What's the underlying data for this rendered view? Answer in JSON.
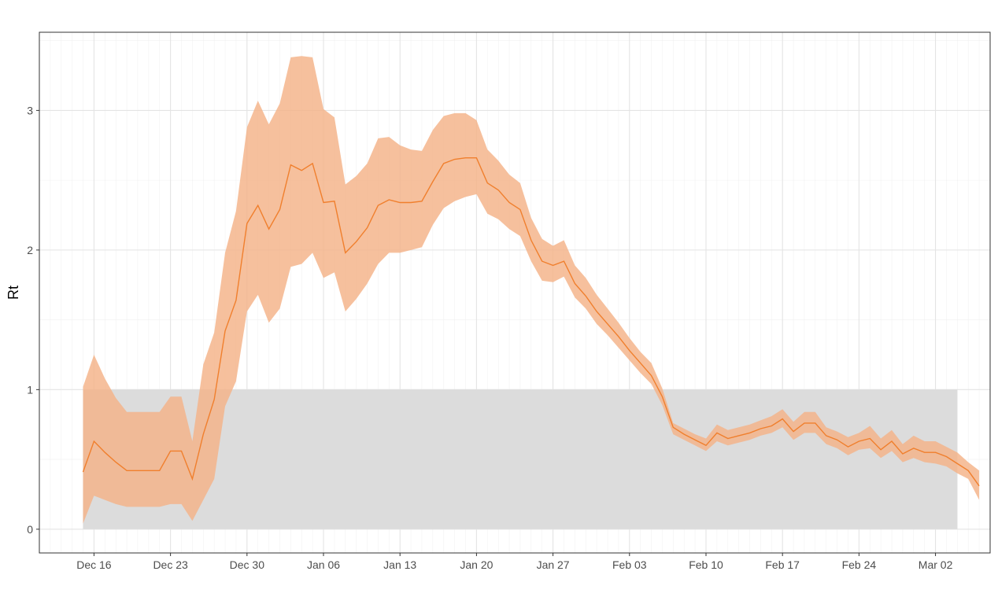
{
  "chart_data": {
    "type": "line",
    "title": "",
    "xlabel": "",
    "ylabel": "Rt",
    "x_ticks": [
      "Dec 16",
      "Dec 23",
      "Dec 30",
      "Jan 06",
      "Jan 13",
      "Jan 20",
      "Jan 27",
      "Feb 03",
      "Feb 10",
      "Feb 17",
      "Feb 24",
      "Mar 02"
    ],
    "y_ticks": [
      "0",
      "1",
      "2",
      "3"
    ],
    "ylim": [
      -0.17,
      3.56
    ],
    "xlim": [
      "2020-12-11",
      "2021-03-08"
    ],
    "grid": true,
    "legend": "none",
    "colors": {
      "line": "#f07f2d",
      "ribbon": "#f4b287",
      "threshold_band": "#dcdcdc",
      "muted_line": "#d8a57f",
      "muted_ribbon": "#ecc6a6"
    },
    "threshold_band": {
      "ymin": 0,
      "ymax": 1,
      "x_start": "2020-12-15",
      "x_end": "2021-03-05"
    },
    "series": [
      {
        "x": [
          "2020-12-15",
          "2020-12-16",
          "2020-12-17",
          "2020-12-18",
          "2020-12-19",
          "2020-12-20",
          "2020-12-21",
          "2020-12-22",
          "2020-12-23",
          "2020-12-24",
          "2020-12-25",
          "2020-12-26",
          "2020-12-27",
          "2020-12-28",
          "2020-12-29",
          "2020-12-30",
          "2020-12-31",
          "2021-01-01",
          "2021-01-02",
          "2021-01-03",
          "2021-01-04",
          "2021-01-05",
          "2021-01-06",
          "2021-01-07",
          "2021-01-08",
          "2021-01-09",
          "2021-01-10",
          "2021-01-11",
          "2021-01-12",
          "2021-01-13",
          "2021-01-14",
          "2021-01-15",
          "2021-01-16",
          "2021-01-17",
          "2021-01-18",
          "2021-01-19",
          "2021-01-20",
          "2021-01-21",
          "2021-01-22",
          "2021-01-23",
          "2021-01-24",
          "2021-01-25",
          "2021-01-26",
          "2021-01-27",
          "2021-01-28",
          "2021-01-29",
          "2021-01-30",
          "2021-01-31",
          "2021-02-01",
          "2021-02-02",
          "2021-02-03",
          "2021-02-04",
          "2021-02-05",
          "2021-02-06",
          "2021-02-07",
          "2021-02-08",
          "2021-02-09",
          "2021-02-10",
          "2021-02-11",
          "2021-02-12",
          "2021-02-13",
          "2021-02-14",
          "2021-02-15",
          "2021-02-16",
          "2021-02-17",
          "2021-02-18",
          "2021-02-19",
          "2021-02-20",
          "2021-02-21",
          "2021-02-22",
          "2021-02-23",
          "2021-02-24",
          "2021-02-25",
          "2021-02-26",
          "2021-02-27",
          "2021-02-28",
          "2021-03-01",
          "2021-03-02",
          "2021-03-03",
          "2021-03-04",
          "2021-03-05"
        ],
        "mean": [
          0.41,
          0.63,
          0.55,
          0.48,
          0.42,
          0.42,
          0.42,
          0.42,
          0.56,
          0.56,
          0.36,
          0.68,
          0.93,
          1.42,
          1.64,
          2.19,
          2.32,
          2.15,
          2.29,
          2.61,
          2.57,
          2.62,
          2.34,
          2.35,
          1.98,
          2.06,
          2.16,
          2.32,
          2.36,
          2.34,
          2.34,
          2.35,
          2.49,
          2.62,
          2.65,
          2.66,
          2.66,
          2.48,
          2.43,
          2.34,
          2.29,
          2.07,
          1.92,
          1.89,
          1.92,
          1.76,
          1.67,
          1.56,
          1.47,
          1.38,
          1.28,
          1.19,
          1.1,
          0.95,
          0.73,
          0.68,
          0.64,
          0.6,
          0.69,
          0.65,
          0.67,
          0.69,
          0.72,
          0.74,
          0.79,
          0.7,
          0.76,
          0.76,
          0.67,
          0.64,
          0.59,
          0.63,
          0.65,
          0.57,
          0.63,
          0.54,
          0.58,
          0.55,
          0.55,
          0.52,
          0.47
        ],
        "upper": [
          1.02,
          1.25,
          1.08,
          0.94,
          0.84,
          0.84,
          0.84,
          0.84,
          0.95,
          0.95,
          0.63,
          1.18,
          1.41,
          1.98,
          2.28,
          2.88,
          3.07,
          2.9,
          3.05,
          3.38,
          3.39,
          3.38,
          3.01,
          2.95,
          2.47,
          2.53,
          2.62,
          2.8,
          2.81,
          2.75,
          2.72,
          2.71,
          2.86,
          2.96,
          2.98,
          2.98,
          2.93,
          2.72,
          2.64,
          2.54,
          2.48,
          2.23,
          2.08,
          2.03,
          2.07,
          1.89,
          1.8,
          1.68,
          1.58,
          1.48,
          1.37,
          1.27,
          1.19,
          1.01,
          0.76,
          0.72,
          0.68,
          0.65,
          0.75,
          0.71,
          0.73,
          0.75,
          0.78,
          0.81,
          0.86,
          0.77,
          0.84,
          0.84,
          0.73,
          0.7,
          0.66,
          0.69,
          0.74,
          0.65,
          0.71,
          0.61,
          0.67,
          0.63,
          0.63,
          0.59,
          0.55
        ],
        "lower": [
          0.04,
          0.24,
          0.21,
          0.18,
          0.16,
          0.16,
          0.16,
          0.16,
          0.18,
          0.18,
          0.06,
          0.21,
          0.36,
          0.88,
          1.06,
          1.56,
          1.68,
          1.48,
          1.58,
          1.88,
          1.9,
          1.98,
          1.8,
          1.84,
          1.56,
          1.65,
          1.76,
          1.9,
          1.98,
          1.98,
          2.0,
          2.02,
          2.18,
          2.3,
          2.35,
          2.38,
          2.4,
          2.26,
          2.22,
          2.15,
          2.1,
          1.92,
          1.78,
          1.77,
          1.81,
          1.66,
          1.58,
          1.47,
          1.39,
          1.3,
          1.21,
          1.12,
          1.04,
          0.89,
          0.68,
          0.64,
          0.6,
          0.56,
          0.63,
          0.6,
          0.62,
          0.64,
          0.67,
          0.69,
          0.73,
          0.64,
          0.69,
          0.69,
          0.61,
          0.58,
          0.53,
          0.57,
          0.58,
          0.51,
          0.56,
          0.48,
          0.51,
          0.48,
          0.47,
          0.45,
          0.4
        ],
        "x_tail": [
          "2021-03-06",
          "2021-03-07"
        ],
        "mean_tail": [
          0.42,
          0.31
        ],
        "upper_tail": [
          0.48,
          0.42
        ],
        "lower_tail": [
          0.36,
          0.21
        ]
      }
    ]
  }
}
